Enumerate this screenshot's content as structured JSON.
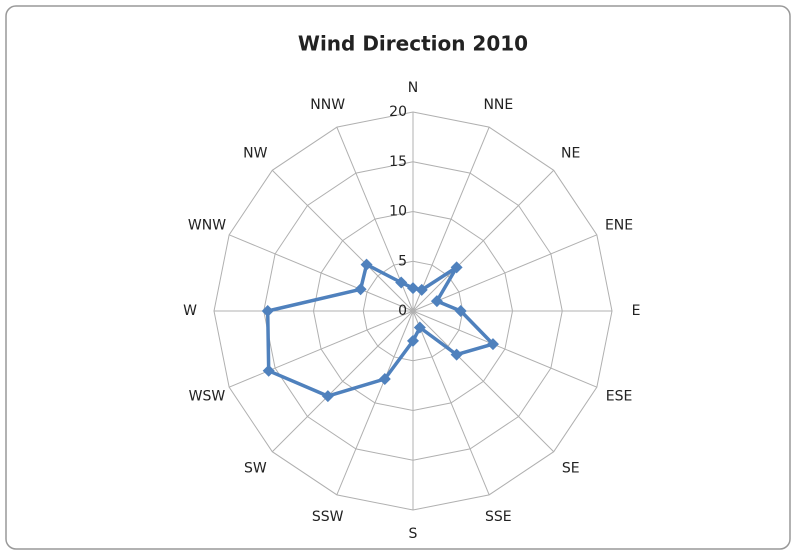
{
  "chart_data": {
    "type": "radar",
    "title": "Wind Direction 2010",
    "categories": [
      "N",
      "NNE",
      "NE",
      "ENE",
      "E",
      "ESE",
      "SE",
      "SSE",
      "S",
      "SSW",
      "SW",
      "WSW",
      "W",
      "WNW",
      "NW",
      "NNW"
    ],
    "series": [
      {
        "name": "Wind Direction 2010",
        "color": "#4f81bd",
        "values": [
          2.3,
          2.3,
          6.2,
          2.6,
          4.8,
          8.7,
          6.2,
          1.8,
          3,
          7.4,
          12.1,
          15.7,
          14.6,
          5.7,
          6.6,
          3.1
        ]
      }
    ],
    "rlim": [
      0,
      20
    ],
    "rticks": [
      0,
      5,
      10,
      15,
      20
    ],
    "grid": true
  }
}
